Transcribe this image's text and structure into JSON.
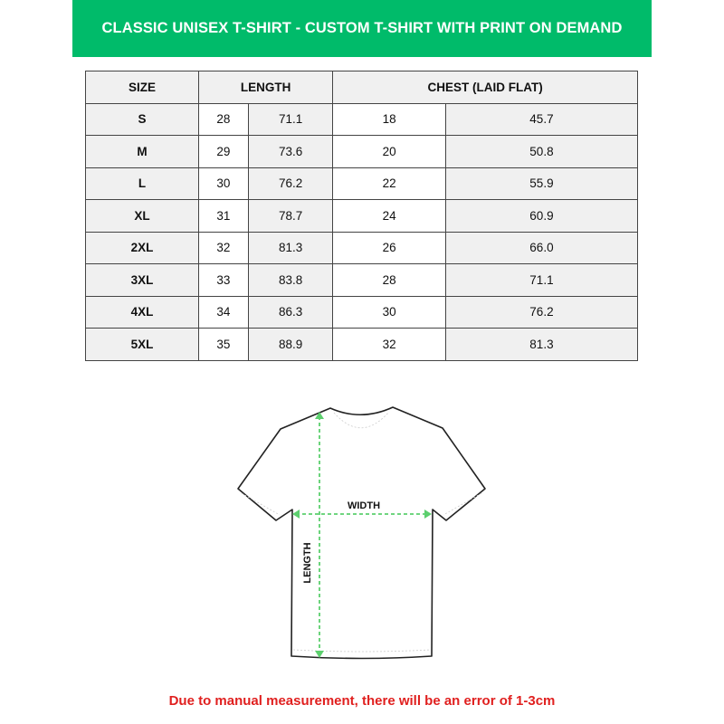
{
  "title": "CLASSIC UNISEX T-SHIRT - CUSTOM T-SHIRT WITH PRINT ON DEMAND",
  "table": {
    "headers": {
      "size": "SIZE",
      "length": "LENGTH",
      "chest": "CHEST (LAID FLAT)"
    },
    "rows": [
      {
        "size": "S",
        "length_in": "28",
        "length_cm": "71.1",
        "chest_in": "18",
        "chest_cm": "45.7"
      },
      {
        "size": "M",
        "length_in": "29",
        "length_cm": "73.6",
        "chest_in": "20",
        "chest_cm": "50.8"
      },
      {
        "size": "L",
        "length_in": "30",
        "length_cm": "76.2",
        "chest_in": "22",
        "chest_cm": "55.9"
      },
      {
        "size": "XL",
        "length_in": "31",
        "length_cm": "78.7",
        "chest_in": "24",
        "chest_cm": "60.9"
      },
      {
        "size": "2XL",
        "length_in": "32",
        "length_cm": "81.3",
        "chest_in": "26",
        "chest_cm": "66.0"
      },
      {
        "size": "3XL",
        "length_in": "33",
        "length_cm": "83.8",
        "chest_in": "28",
        "chest_cm": "71.1"
      },
      {
        "size": "4XL",
        "length_in": "34",
        "length_cm": "86.3",
        "chest_in": "30",
        "chest_cm": "76.2"
      },
      {
        "size": "5XL",
        "length_in": "35",
        "length_cm": "88.9",
        "chest_in": "32",
        "chest_cm": "81.3"
      }
    ]
  },
  "diagram": {
    "width_label": "WIDTH",
    "length_label": "LENGTH",
    "arrow_color": "#5ccf6e"
  },
  "footer": "Due to manual measurement, there will be an error of 1-3cm",
  "colors": {
    "banner": "#00bb6a",
    "footer_text": "#e0201f"
  }
}
